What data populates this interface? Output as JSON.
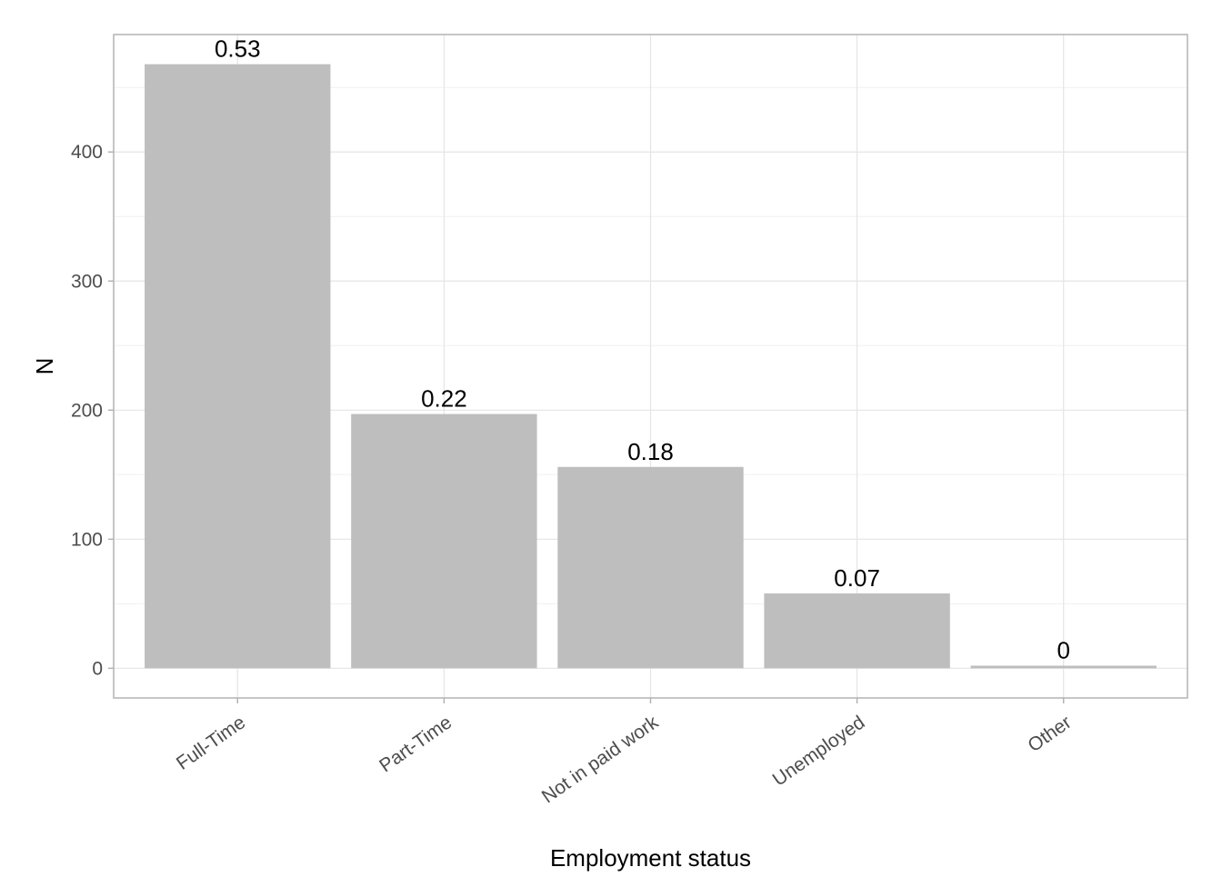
{
  "chart_data": {
    "type": "bar",
    "title": "",
    "xlabel": "Employment status",
    "ylabel": "N",
    "categories": [
      "Full-Time",
      "Part-Time",
      "Not in paid work",
      "Unemployed",
      "Other"
    ],
    "values": [
      468,
      197,
      156,
      58,
      2
    ],
    "data_labels": [
      "0.53",
      "0.22",
      "0.18",
      "0.07",
      "0"
    ],
    "ylim": [
      -23,
      491
    ],
    "yticks": [
      0,
      100,
      200,
      300,
      400
    ],
    "ytick_labels": [
      "0",
      "100",
      "200",
      "300",
      "400"
    ],
    "grid": true,
    "legend": "none",
    "colors": {
      "bar": "#bebebe",
      "grid_major": "#e5e5e5",
      "grid_minor": "#f0f0f0",
      "panel_border": "#b3b3b3",
      "axis_text": "#4d4d4d",
      "label_text": "#000000"
    }
  }
}
